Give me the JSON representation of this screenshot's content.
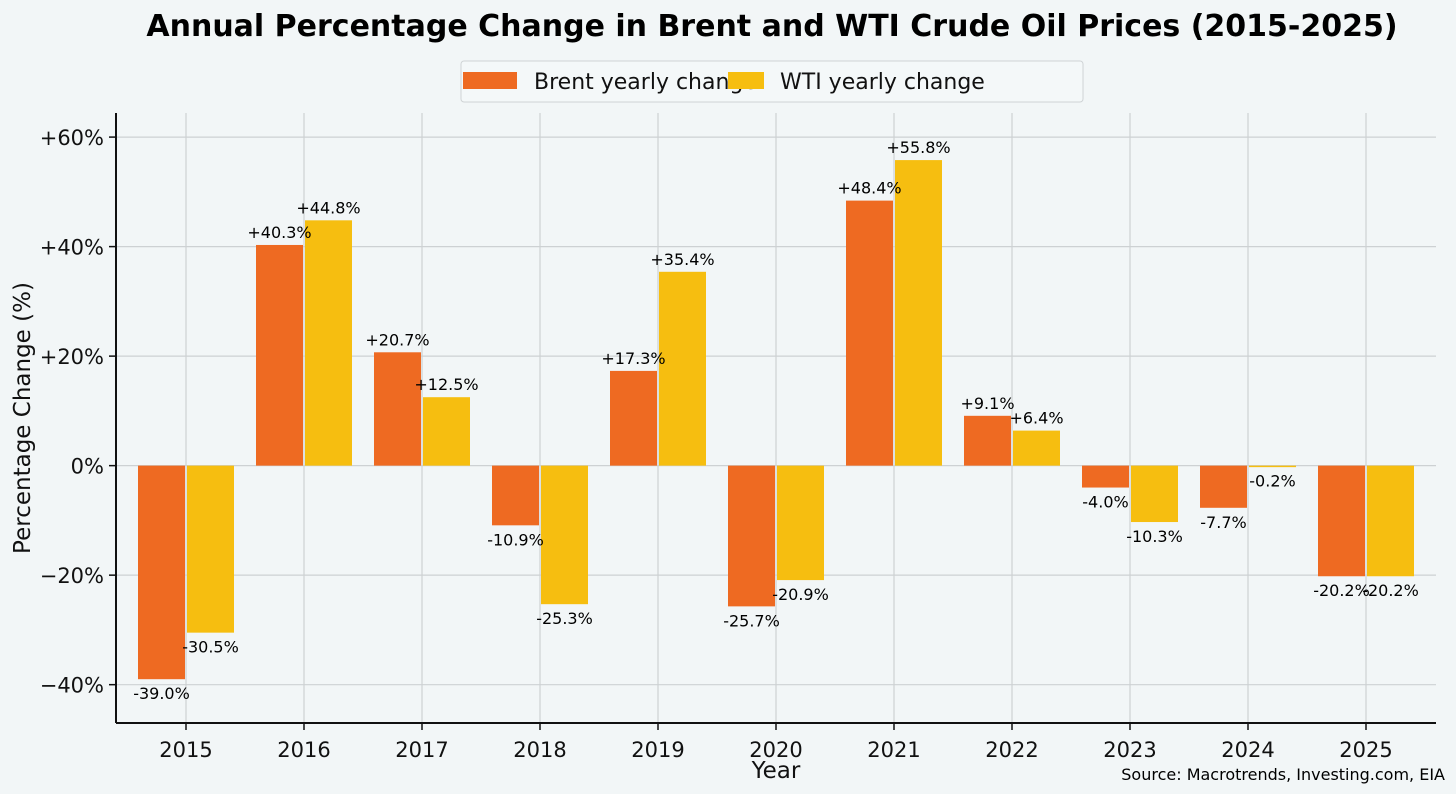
{
  "chart_data": {
    "type": "bar",
    "title": "Annual Percentage Change in Brent and WTI Crude Oil Prices (2015-2025)",
    "xlabel": "Year",
    "ylabel": "Percentage Change (%)",
    "categories": [
      "2015",
      "2016",
      "2017",
      "2018",
      "2019",
      "2020",
      "2021",
      "2022",
      "2023",
      "2024",
      "2025"
    ],
    "series": [
      {
        "name": "Brent yearly change",
        "color": "#ee6a22",
        "values": [
          -39.0,
          40.3,
          20.7,
          -10.9,
          17.3,
          -25.7,
          48.4,
          9.1,
          -4.0,
          -7.7,
          -20.2
        ],
        "labels": [
          "-39.0%",
          "+40.3%",
          "+20.7%",
          "-10.9%",
          "+17.3%",
          "-25.7%",
          "+48.4%",
          "+9.1%",
          "-4.0%",
          "-7.7%",
          "-20.2%"
        ]
      },
      {
        "name": "WTI yearly change",
        "color": "#f6be10",
        "values": [
          -30.5,
          44.8,
          12.5,
          -25.3,
          35.4,
          -20.9,
          55.8,
          6.4,
          -10.3,
          -0.2,
          -20.2
        ],
        "labels": [
          "-30.5%",
          "+44.8%",
          "+12.5%",
          "-25.3%",
          "+35.4%",
          "-20.9%",
          "+55.8%",
          "+6.4%",
          "-10.3%",
          "-0.2%",
          "-20.2%"
        ]
      }
    ],
    "ylim": [
      -47,
      64.4
    ],
    "yticks": [
      -40,
      -20,
      0,
      20,
      40,
      60
    ],
    "ytick_labels": [
      "−40%",
      "−20%",
      "0%",
      "+20%",
      "+40%",
      "+60%"
    ],
    "grid": true,
    "legend_placement": "top-center",
    "source": "Source: Macrotrends, Investing.com, EIA"
  }
}
